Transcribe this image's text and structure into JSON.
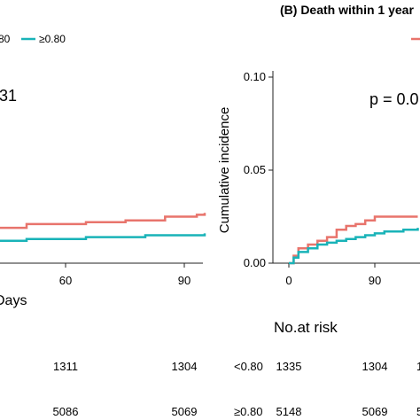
{
  "colors": {
    "low": "#E8746C",
    "high": "#19B3B8",
    "axis": "#222222"
  },
  "legend_left": {
    "low_partial": "80",
    "high_label": "≥0.80"
  },
  "panel_a_partial": {
    "pvalue_partial": "31",
    "xlabel_partial": "Days",
    "xticks": [
      "60",
      "90"
    ],
    "risk_rows": [
      [
        "1311",
        "1304"
      ],
      [
        "5086",
        "5069"
      ]
    ]
  },
  "panel_b": {
    "title": "(B) Death within 1 year",
    "ylabel": "Cumulative incidence",
    "yticks": [
      "0.00",
      "0.05",
      "0.10"
    ],
    "xticks": [
      "0",
      "90"
    ],
    "pvalue_partial": "p = 0.0",
    "risk_title": "No.at risk",
    "risk_labels": [
      "<0.80",
      "≥0.80"
    ],
    "risk_rows": [
      [
        "1335",
        "1304",
        "1"
      ],
      [
        "5148",
        "5069",
        "5"
      ]
    ]
  },
  "chart_data": [
    {
      "type": "line",
      "title": "",
      "xlabel": "Days",
      "ylabel": "",
      "series": [
        {
          "name": "<0.80",
          "x": [
            0,
            5,
            12,
            20,
            30,
            45,
            60,
            70,
            80,
            88,
            90
          ],
          "y": [
            0.012,
            0.013,
            0.015,
            0.018,
            0.019,
            0.021,
            0.022,
            0.023,
            0.025,
            0.026,
            0.027
          ]
        },
        {
          "name": "≥0.80",
          "x": [
            0,
            10,
            20,
            30,
            45,
            60,
            75,
            90
          ],
          "y": [
            0.009,
            0.01,
            0.011,
            0.012,
            0.013,
            0.014,
            0.015,
            0.016
          ]
        }
      ],
      "xlim": [
        0,
        92
      ],
      "ylim": [
        0,
        0.1
      ],
      "grid": false
    },
    {
      "type": "line",
      "title": "(B) Death within 1 year",
      "xlabel": "",
      "ylabel": "Cumulative incidence",
      "series": [
        {
          "name": "<0.80",
          "x": [
            0,
            5,
            10,
            20,
            30,
            40,
            50,
            60,
            70,
            80,
            90,
            100,
            110,
            120,
            135
          ],
          "y": [
            0,
            0.004,
            0.008,
            0.01,
            0.012,
            0.014,
            0.018,
            0.02,
            0.021,
            0.023,
            0.025,
            0.025,
            0.025,
            0.025,
            0.025
          ]
        },
        {
          "name": "≥0.80",
          "x": [
            0,
            5,
            10,
            20,
            30,
            40,
            50,
            60,
            70,
            80,
            90,
            100,
            110,
            120,
            135
          ],
          "y": [
            0,
            0.003,
            0.006,
            0.008,
            0.01,
            0.011,
            0.012,
            0.013,
            0.014,
            0.015,
            0.016,
            0.017,
            0.017,
            0.018,
            0.019
          ]
        }
      ],
      "xlim": [
        0,
        135
      ],
      "ylim": [
        0,
        0.1
      ],
      "grid": false
    }
  ]
}
